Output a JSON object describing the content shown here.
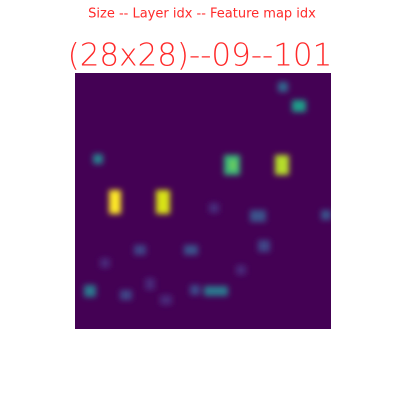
{
  "header": {
    "subtitle": "Size -- Layer idx -- Feature map idx",
    "title": "(28x28)--09--101"
  }
}
